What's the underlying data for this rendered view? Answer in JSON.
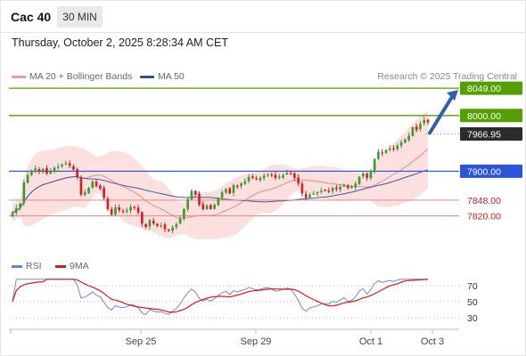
{
  "header": {
    "title": "Cac 40",
    "timeframe": "30 MIN"
  },
  "datetime": "Thursday, October 2, 2025 8:28:34 AM CET",
  "legend": {
    "item1": "MA 20 + Bollinger Bands",
    "item2": "MA 50",
    "credit": "Research © 2025 Trading Central"
  },
  "rsi_legend": {
    "item1": "RSI",
    "item2": "9MA"
  },
  "colors": {
    "green": "#53a000",
    "blue": "#2d5fe0",
    "red": "#c52020",
    "dark": "#2b2b2b",
    "band": "#fcdada",
    "ma20": "#e88a8a",
    "ma50": "#3b5998",
    "rsi": "#6d8ad6",
    "rsi_ma": "#d81a1a",
    "arrow": "#2f5fb0"
  },
  "chart_data": [
    {
      "type": "candlestick",
      "title": "Cac 40",
      "timeframe": "30 MIN",
      "ylim": [
        7760,
        8070
      ],
      "xlabels": [
        "Sep 25",
        "Sep 29",
        "Oct 1",
        "Oct 3"
      ],
      "closes": [
        7825,
        7834,
        7842,
        7880,
        7893,
        7901,
        7905,
        7899,
        7904,
        7896,
        7900,
        7906,
        7908,
        7912,
        7914,
        7910,
        7903,
        7890,
        7858,
        7862,
        7870,
        7882,
        7873,
        7869,
        7852,
        7832,
        7822,
        7835,
        7830,
        7828,
        7830,
        7836,
        7834,
        7826,
        7806,
        7800,
        7812,
        7806,
        7802,
        7803,
        7796,
        7793,
        7799,
        7805,
        7815,
        7832,
        7850,
        7865,
        7858,
        7840,
        7832,
        7838,
        7832,
        7840,
        7852,
        7862,
        7868,
        7860,
        7875,
        7872,
        7878,
        7882,
        7890,
        7888,
        7885,
        7888,
        7892,
        7894,
        7892,
        7888,
        7890,
        7893,
        7897,
        7895,
        7888,
        7878,
        7860,
        7852,
        7858,
        7860,
        7862,
        7865,
        7866,
        7865,
        7870,
        7868,
        7872,
        7876,
        7870,
        7872,
        7878,
        7890,
        7896,
        7888,
        7900,
        7922,
        7935,
        7932,
        7938,
        7941,
        7940,
        7946,
        7952,
        7957,
        7964,
        7979,
        7974,
        7985,
        7992,
        7988
      ],
      "horizontal_levels": [
        {
          "value": 8049.0,
          "label": "8049.00",
          "color": "green"
        },
        {
          "value": 8000.0,
          "label": "8000.00",
          "color": "green"
        },
        {
          "value": 7966.95,
          "label": "7966.95",
          "color": "dark",
          "current": true
        },
        {
          "value": 7900.0,
          "label": "7900.00",
          "color": "blue"
        },
        {
          "value": 7848.0,
          "label": "7848.00",
          "color": "red"
        },
        {
          "value": 7820.0,
          "label": "7820.00",
          "color": "red"
        }
      ],
      "indicators": [
        "MA 20 + Bollinger Bands",
        "MA 50"
      ],
      "projection_arrow": {
        "from": 7966.95,
        "to": 8049.0
      }
    },
    {
      "type": "line",
      "title": "RSI",
      "series": [
        {
          "name": "RSI"
        },
        {
          "name": "9MA"
        }
      ],
      "ylim": [
        20,
        80
      ],
      "yticks": [
        70,
        50,
        30
      ],
      "reference_lines": [
        70,
        50,
        30
      ]
    }
  ]
}
